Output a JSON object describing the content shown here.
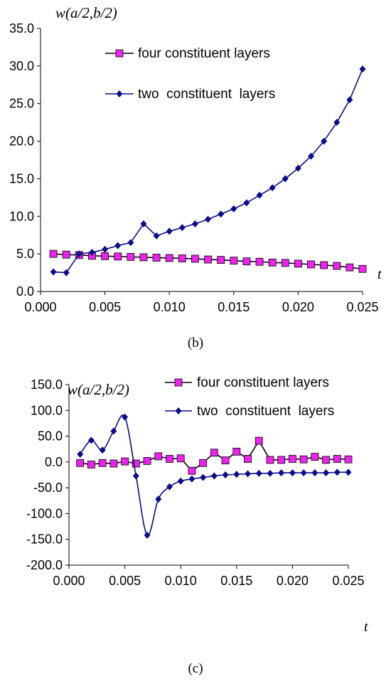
{
  "colors": {
    "four": "#ee22ee",
    "two": "#0b0b8c",
    "axis": "#000000"
  },
  "chart_data": [
    {
      "type": "line",
      "caption": "(b)",
      "ylabel": "w(a/2,b/2)",
      "xlabel": "t",
      "ylim": [
        0,
        35
      ],
      "xlim": [
        0,
        0.025
      ],
      "yticks": [
        "0.0",
        "5.0",
        "10.0",
        "15.0",
        "20.0",
        "25.0",
        "30.0",
        "35.0"
      ],
      "xticks": [
        "0.000",
        "0.005",
        "0.010",
        "0.015",
        "0.020",
        "0.025"
      ],
      "grid": false,
      "legend_position": "top-right",
      "x": [
        0.001,
        0.002,
        0.003,
        0.004,
        0.005,
        0.006,
        0.007,
        0.008,
        0.009,
        0.01,
        0.011,
        0.012,
        0.013,
        0.014,
        0.015,
        0.016,
        0.017,
        0.018,
        0.019,
        0.02,
        0.021,
        0.022,
        0.023,
        0.024,
        0.025
      ],
      "series": [
        {
          "name": "four constituent layers",
          "marker": "square",
          "values": [
            5.0,
            4.9,
            4.85,
            4.75,
            4.7,
            4.65,
            4.6,
            4.55,
            4.5,
            4.45,
            4.4,
            4.35,
            4.25,
            4.2,
            4.1,
            4.0,
            3.95,
            3.85,
            3.8,
            3.7,
            3.6,
            3.5,
            3.4,
            3.2,
            3.0
          ]
        },
        {
          "name": "two  constituent  layers",
          "marker": "diamond",
          "values": [
            2.6,
            2.5,
            5.0,
            5.2,
            5.6,
            6.1,
            6.5,
            9.0,
            7.4,
            8.0,
            8.5,
            9.0,
            9.6,
            10.3,
            11.0,
            11.8,
            12.8,
            13.8,
            15.0,
            16.4,
            18.0,
            20.0,
            22.5,
            25.5,
            29.6
          ]
        }
      ]
    },
    {
      "type": "line",
      "caption": "(c)",
      "ylabel": "w(a/2,b/2)",
      "xlabel": "t",
      "ylim": [
        -200,
        150
      ],
      "xlim": [
        0,
        0.025
      ],
      "yticks": [
        "-200.0",
        "-150.0",
        "-100.0",
        "-50.0",
        "0.0",
        "50.0",
        "100.0",
        "150.0"
      ],
      "xticks": [
        "0.000",
        "0.005",
        "0.010",
        "0.015",
        "0.020",
        "0.025"
      ],
      "grid": false,
      "legend_position": "top-right",
      "x": [
        0.001,
        0.002,
        0.003,
        0.004,
        0.005,
        0.006,
        0.007,
        0.008,
        0.009,
        0.01,
        0.011,
        0.012,
        0.013,
        0.014,
        0.015,
        0.016,
        0.017,
        0.018,
        0.019,
        0.02,
        0.021,
        0.022,
        0.023,
        0.024,
        0.025
      ],
      "series": [
        {
          "name": "four constituent layers",
          "marker": "square",
          "values": [
            -2,
            -5,
            -2,
            -3,
            1,
            -3,
            2,
            11,
            6,
            7,
            -17,
            -2,
            18,
            3,
            20,
            6,
            41,
            4,
            4,
            6,
            5,
            10,
            4,
            6,
            5
          ]
        },
        {
          "name": "two  constituent  layers",
          "marker": "diamond",
          "values": [
            15,
            42,
            23,
            60,
            87,
            -27,
            -142,
            -72,
            -48,
            -37,
            -33,
            -30,
            -27,
            -25,
            -24,
            -23,
            -22,
            -22,
            -21,
            -21,
            -21,
            -21,
            -21,
            -20,
            -20
          ]
        }
      ]
    }
  ]
}
